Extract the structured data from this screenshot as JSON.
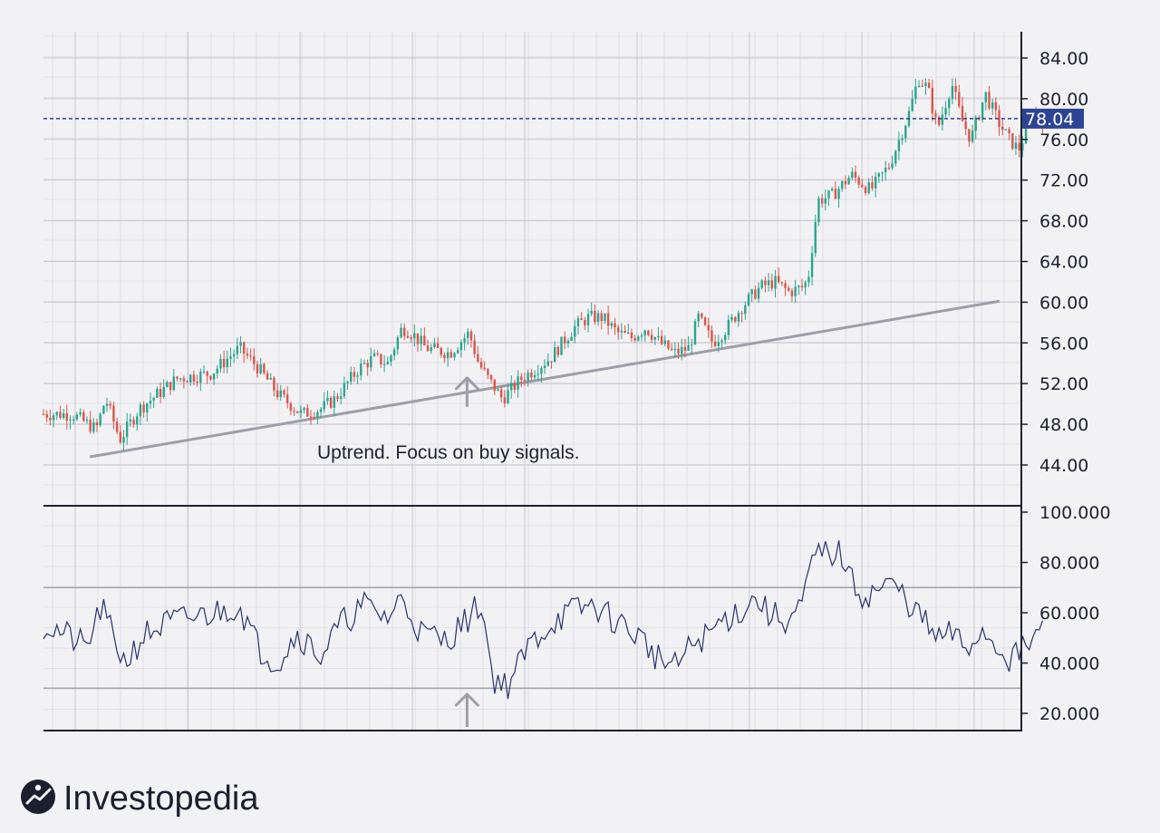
{
  "brand": {
    "name": "Investopedia",
    "logo_icon": "investopedia-i-mark"
  },
  "colors": {
    "up": "#2aa58d",
    "down": "#d9564c",
    "rsi": "#27336b",
    "trendline": "#9d9ea6",
    "last_price_bg": "#2d4494",
    "grid": "#d4d3dc",
    "axis": "#1f2130"
  },
  "chart_data": [
    {
      "type": "candlestick",
      "panel": "price",
      "yticks": [
        "84.00",
        "80.00",
        "76.00",
        "72.00",
        "68.00",
        "64.00",
        "60.00",
        "56.00",
        "52.00",
        "48.00",
        "44.00"
      ],
      "ylim": [
        42.0,
        86.0
      ],
      "last_price": 78.04,
      "last_price_label": "78.04",
      "annotation": "Uptrend. Focus on buy signals.",
      "trendline": {
        "start": [
          0.0485,
          44.8
        ],
        "end": [
          1.0,
          60.1
        ]
      },
      "arrow_marker": {
        "x": 0.443,
        "value": 49.0
      },
      "anchors": [
        [
          0.0,
          49
        ],
        [
          0.03,
          49
        ],
        [
          0.055,
          47.5
        ],
        [
          0.065,
          50.5
        ],
        [
          0.08,
          46.5
        ],
        [
          0.1,
          49.5
        ],
        [
          0.14,
          52.5
        ],
        [
          0.175,
          53
        ],
        [
          0.205,
          55.5
        ],
        [
          0.225,
          53.5
        ],
        [
          0.245,
          51
        ],
        [
          0.27,
          49
        ],
        [
          0.29,
          49.5
        ],
        [
          0.305,
          50.5
        ],
        [
          0.33,
          53.5
        ],
        [
          0.345,
          54.5
        ],
        [
          0.36,
          54
        ],
        [
          0.375,
          57.5
        ],
        [
          0.385,
          57
        ],
        [
          0.4,
          55.5
        ],
        [
          0.425,
          55
        ],
        [
          0.445,
          57
        ],
        [
          0.455,
          54
        ],
        [
          0.465,
          52.5
        ],
        [
          0.48,
          50.5
        ],
        [
          0.5,
          52.5
        ],
        [
          0.53,
          54.5
        ],
        [
          0.555,
          57.5
        ],
        [
          0.57,
          58.5
        ],
        [
          0.585,
          58.5
        ],
        [
          0.6,
          57
        ],
        [
          0.615,
          56.5
        ],
        [
          0.63,
          57.5
        ],
        [
          0.645,
          56
        ],
        [
          0.66,
          55
        ],
        [
          0.675,
          55.5
        ],
        [
          0.685,
          58.5
        ],
        [
          0.7,
          56
        ],
        [
          0.715,
          57.5
        ],
        [
          0.73,
          59.5
        ],
        [
          0.75,
          61.5
        ],
        [
          0.765,
          62
        ],
        [
          0.78,
          61
        ],
        [
          0.795,
          61.5
        ],
        [
          0.8,
          62.5
        ],
        [
          0.81,
          70
        ],
        [
          0.825,
          70.5
        ],
        [
          0.845,
          72.5
        ],
        [
          0.865,
          71
        ],
        [
          0.885,
          73.5
        ],
        [
          0.905,
          78.5
        ],
        [
          0.915,
          82
        ],
        [
          0.925,
          81
        ],
        [
          0.935,
          77
        ],
        [
          0.95,
          81.5
        ],
        [
          0.96,
          78
        ],
        [
          0.97,
          76
        ],
        [
          0.985,
          80.5
        ],
        [
          0.995,
          78.5
        ],
        [
          1.0,
          77.5
        ],
        [
          1.01,
          76
        ],
        [
          1.02,
          75
        ],
        [
          1.035,
          78.5
        ],
        [
          1.045,
          78
        ]
      ]
    },
    {
      "type": "line",
      "panel": "oscillator",
      "yticks": [
        "100.000",
        "80.000",
        "60.000",
        "40.000",
        "20.000"
      ],
      "ylim": [
        12.0,
        100.0
      ],
      "reference_lines": [
        70,
        30
      ],
      "series": [
        {
          "name": "",
          "color": "#27336b"
        }
      ],
      "anchors": [
        [
          0.0,
          55
        ],
        [
          0.02,
          52
        ],
        [
          0.045,
          46
        ],
        [
          0.06,
          62
        ],
        [
          0.085,
          40
        ],
        [
          0.105,
          51
        ],
        [
          0.13,
          56
        ],
        [
          0.155,
          58
        ],
        [
          0.18,
          60
        ],
        [
          0.205,
          63
        ],
        [
          0.225,
          46
        ],
        [
          0.245,
          40
        ],
        [
          0.265,
          52
        ],
        [
          0.29,
          43
        ],
        [
          0.31,
          55
        ],
        [
          0.335,
          63
        ],
        [
          0.36,
          58
        ],
        [
          0.375,
          66
        ],
        [
          0.395,
          52
        ],
        [
          0.42,
          49
        ],
        [
          0.44,
          56
        ],
        [
          0.458,
          64
        ],
        [
          0.47,
          34
        ],
        [
          0.485,
          31
        ],
        [
          0.51,
          48
        ],
        [
          0.535,
          57
        ],
        [
          0.555,
          61
        ],
        [
          0.575,
          63
        ],
        [
          0.59,
          59
        ],
        [
          0.61,
          54
        ],
        [
          0.625,
          50
        ],
        [
          0.64,
          43
        ],
        [
          0.66,
          38
        ],
        [
          0.68,
          48
        ],
        [
          0.695,
          51
        ],
        [
          0.71,
          57
        ],
        [
          0.73,
          61
        ],
        [
          0.745,
          66
        ],
        [
          0.76,
          59
        ],
        [
          0.78,
          57
        ],
        [
          0.795,
          64
        ],
        [
          0.805,
          82
        ],
        [
          0.82,
          84
        ],
        [
          0.835,
          83
        ],
        [
          0.845,
          72
        ],
        [
          0.86,
          66
        ],
        [
          0.875,
          70
        ],
        [
          0.89,
          71
        ],
        [
          0.905,
          64
        ],
        [
          0.92,
          57
        ],
        [
          0.935,
          49
        ],
        [
          0.95,
          52
        ],
        [
          0.965,
          45
        ],
        [
          0.98,
          53
        ],
        [
          0.995,
          48
        ],
        [
          1.01,
          42
        ],
        [
          1.025,
          45
        ],
        [
          1.04,
          52
        ],
        [
          1.045,
          53
        ]
      ]
    }
  ]
}
